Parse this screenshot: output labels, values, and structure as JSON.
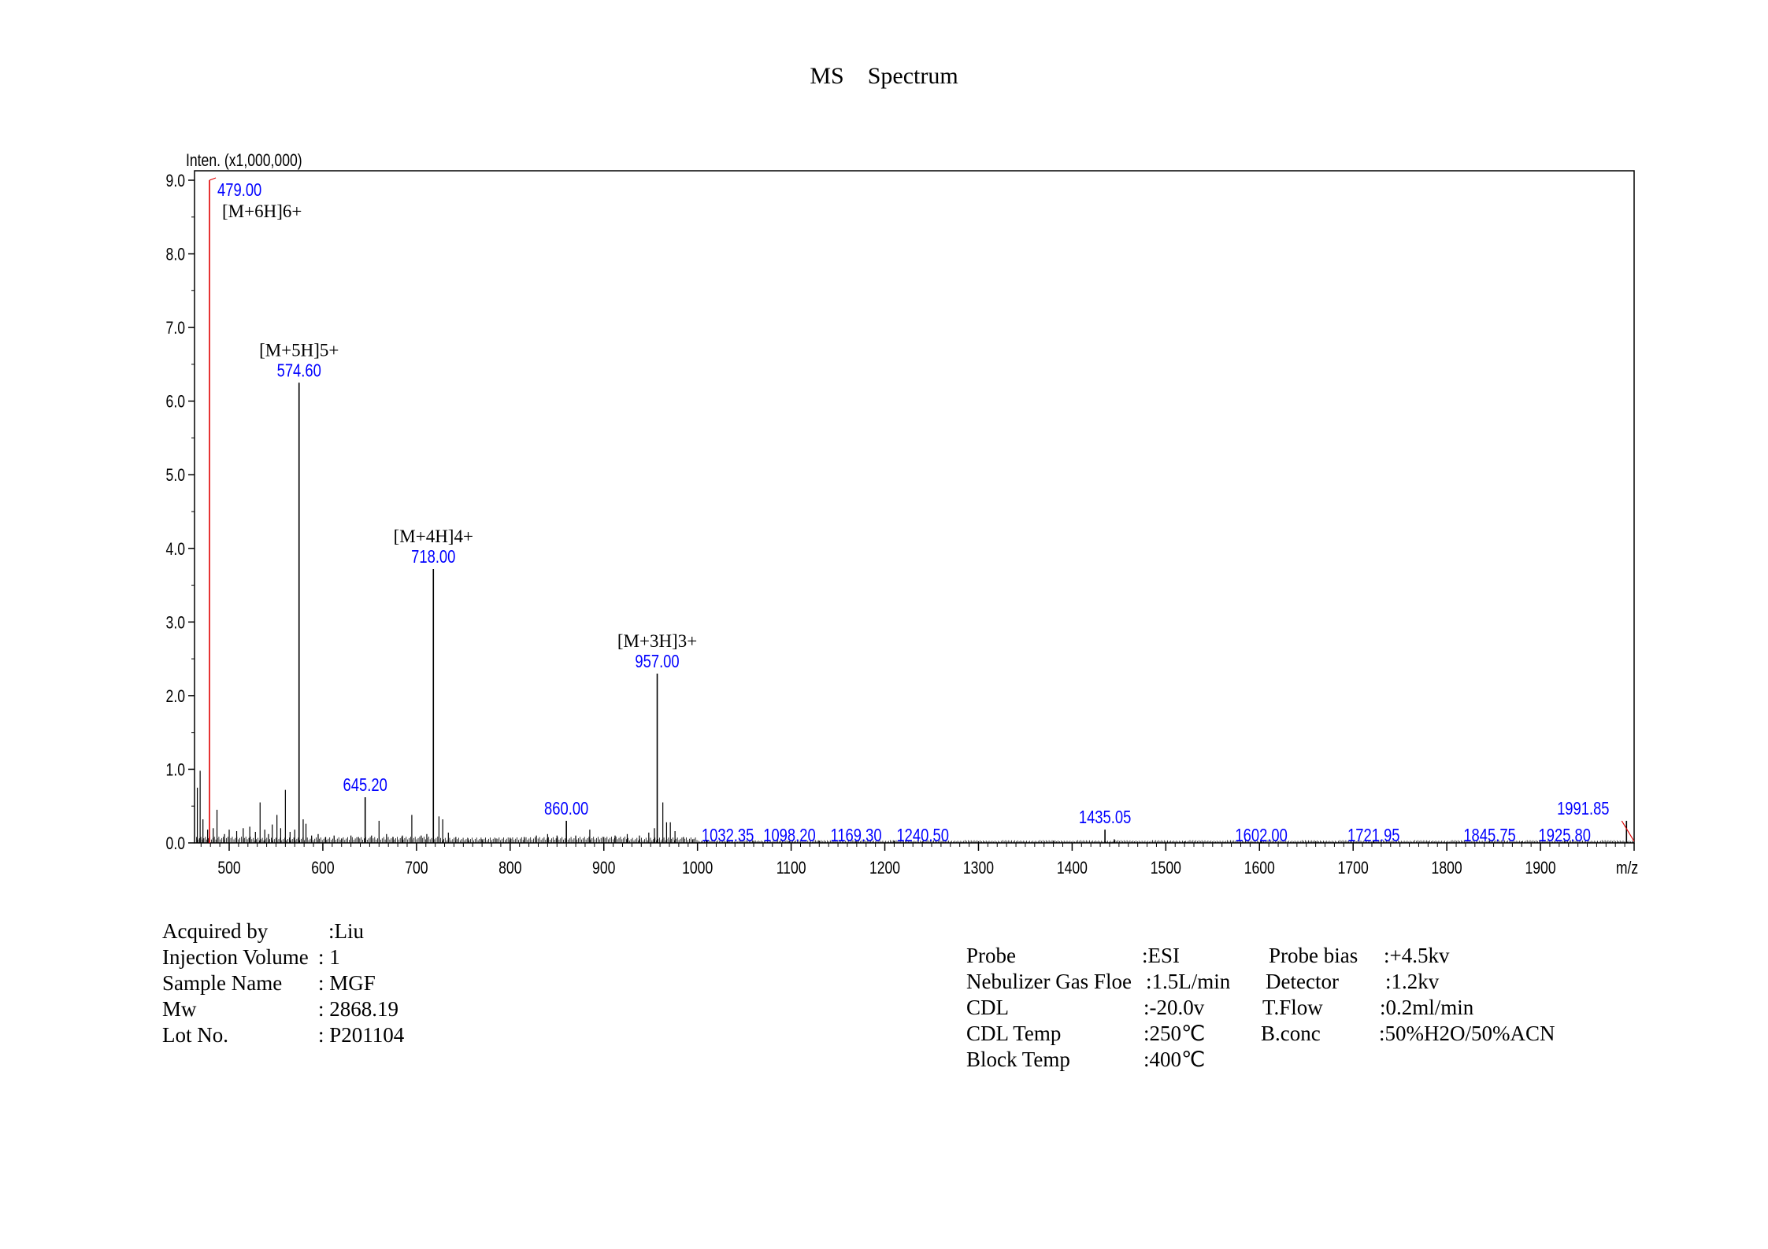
{
  "title": "MS    Spectrum",
  "chart_data": {
    "type": "spectrum",
    "title": "MS    Spectrum",
    "ylabel": "Inten. (x1,000,000)",
    "xlabel": "m/z",
    "xlim": [
      463,
      2000
    ],
    "ylim": [
      0,
      9.0
    ],
    "xticks": [
      500,
      600,
      700,
      800,
      900,
      1000,
      1100,
      1200,
      1300,
      1400,
      1500,
      1600,
      1700,
      1800,
      1900
    ],
    "xtick_labels": [
      "500",
      "600",
      "700",
      "800",
      "900",
      "1000",
      "1100",
      "1200",
      "1300",
      "1400",
      "1500",
      "1600",
      "1700",
      "1800",
      "1900"
    ],
    "yticks": [
      0,
      1,
      2,
      3,
      4,
      5,
      6,
      7,
      8,
      9
    ],
    "ytick_labels": [
      "0.0",
      "1.0",
      "2.0",
      "3.0",
      "4.0",
      "5.0",
      "6.0",
      "7.0",
      "8.0",
      "9.0"
    ],
    "grid": false,
    "highlight_color": "#e00000",
    "label_color": "#0000ff",
    "line_color": "#000000",
    "peaks": [
      {
        "mz": 479.0,
        "intensity": 9.0,
        "label": "479.00",
        "ion": "[M+6H]6+",
        "highlight": true
      },
      {
        "mz": 574.6,
        "intensity": 6.25,
        "label": "574.60",
        "ion": "[M+5H]5+"
      },
      {
        "mz": 718.0,
        "intensity": 3.72,
        "label": "718.00",
        "ion": "[M+4H]4+"
      },
      {
        "mz": 957.0,
        "intensity": 2.3,
        "label": "957.00",
        "ion": "[M+3H]3+"
      },
      {
        "mz": 645.2,
        "intensity": 0.62,
        "label": "645.20"
      },
      {
        "mz": 860.0,
        "intensity": 0.3,
        "label": "860.00"
      },
      {
        "mz": 1032.35,
        "intensity": 0.02,
        "label": "1032.35"
      },
      {
        "mz": 1098.2,
        "intensity": 0.02,
        "label": "1098.20"
      },
      {
        "mz": 1169.3,
        "intensity": 0.02,
        "label": "1169.30"
      },
      {
        "mz": 1240.5,
        "intensity": 0.02,
        "label": "1240.50"
      },
      {
        "mz": 1435.05,
        "intensity": 0.18,
        "label": "1435.05"
      },
      {
        "mz": 1602.0,
        "intensity": 0.02,
        "label": "1602.00"
      },
      {
        "mz": 1721.95,
        "intensity": 0.02,
        "label": "1721.95"
      },
      {
        "mz": 1845.75,
        "intensity": 0.02,
        "label": "1845.75"
      },
      {
        "mz": 1925.8,
        "intensity": 0.02,
        "label": "1925.80"
      },
      {
        "mz": 1991.85,
        "intensity": 0.3,
        "label": "1991.85"
      },
      {
        "mz": 466,
        "intensity": 0.75
      },
      {
        "mz": 469,
        "intensity": 0.98
      },
      {
        "mz": 472,
        "intensity": 0.32
      },
      {
        "mz": 477,
        "intensity": 0.18
      },
      {
        "mz": 483,
        "intensity": 0.2
      },
      {
        "mz": 487,
        "intensity": 0.45
      },
      {
        "mz": 495,
        "intensity": 0.12
      },
      {
        "mz": 500,
        "intensity": 0.18
      },
      {
        "mz": 508,
        "intensity": 0.16
      },
      {
        "mz": 515,
        "intensity": 0.2
      },
      {
        "mz": 522,
        "intensity": 0.22
      },
      {
        "mz": 528,
        "intensity": 0.15
      },
      {
        "mz": 533,
        "intensity": 0.55
      },
      {
        "mz": 538,
        "intensity": 0.18
      },
      {
        "mz": 542,
        "intensity": 0.12
      },
      {
        "mz": 546,
        "intensity": 0.25
      },
      {
        "mz": 551,
        "intensity": 0.38
      },
      {
        "mz": 555,
        "intensity": 0.2
      },
      {
        "mz": 560,
        "intensity": 0.72
      },
      {
        "mz": 565,
        "intensity": 0.15
      },
      {
        "mz": 570,
        "intensity": 0.18
      },
      {
        "mz": 579,
        "intensity": 0.32
      },
      {
        "mz": 582,
        "intensity": 0.26
      },
      {
        "mz": 588,
        "intensity": 0.1
      },
      {
        "mz": 595,
        "intensity": 0.12
      },
      {
        "mz": 603,
        "intensity": 0.08
      },
      {
        "mz": 612,
        "intensity": 0.1
      },
      {
        "mz": 620,
        "intensity": 0.06
      },
      {
        "mz": 630,
        "intensity": 0.1
      },
      {
        "mz": 638,
        "intensity": 0.08
      },
      {
        "mz": 652,
        "intensity": 0.1
      },
      {
        "mz": 660,
        "intensity": 0.3
      },
      {
        "mz": 668,
        "intensity": 0.12
      },
      {
        "mz": 675,
        "intensity": 0.08
      },
      {
        "mz": 685,
        "intensity": 0.1
      },
      {
        "mz": 695,
        "intensity": 0.38
      },
      {
        "mz": 705,
        "intensity": 0.1
      },
      {
        "mz": 711,
        "intensity": 0.12
      },
      {
        "mz": 724,
        "intensity": 0.36
      },
      {
        "mz": 728,
        "intensity": 0.32
      },
      {
        "mz": 734,
        "intensity": 0.14
      },
      {
        "mz": 742,
        "intensity": 0.08
      },
      {
        "mz": 755,
        "intensity": 0.06
      },
      {
        "mz": 770,
        "intensity": 0.05
      },
      {
        "mz": 785,
        "intensity": 0.06
      },
      {
        "mz": 800,
        "intensity": 0.07
      },
      {
        "mz": 815,
        "intensity": 0.08
      },
      {
        "mz": 828,
        "intensity": 0.1
      },
      {
        "mz": 840,
        "intensity": 0.12
      },
      {
        "mz": 850,
        "intensity": 0.1
      },
      {
        "mz": 870,
        "intensity": 0.1
      },
      {
        "mz": 885,
        "intensity": 0.18
      },
      {
        "mz": 900,
        "intensity": 0.08
      },
      {
        "mz": 912,
        "intensity": 0.1
      },
      {
        "mz": 925,
        "intensity": 0.12
      },
      {
        "mz": 938,
        "intensity": 0.1
      },
      {
        "mz": 948,
        "intensity": 0.14
      },
      {
        "mz": 954,
        "intensity": 0.2
      },
      {
        "mz": 963,
        "intensity": 0.55
      },
      {
        "mz": 967,
        "intensity": 0.28
      },
      {
        "mz": 971,
        "intensity": 0.28
      },
      {
        "mz": 976,
        "intensity": 0.16
      },
      {
        "mz": 985,
        "intensity": 0.08
      },
      {
        "mz": 995,
        "intensity": 0.05
      },
      {
        "mz": 1010,
        "intensity": 0.04
      },
      {
        "mz": 1060,
        "intensity": 0.03
      },
      {
        "mz": 1130,
        "intensity": 0.03
      },
      {
        "mz": 1210,
        "intensity": 0.03
      },
      {
        "mz": 1300,
        "intensity": 0.02
      },
      {
        "mz": 1380,
        "intensity": 0.03
      },
      {
        "mz": 1445,
        "intensity": 0.05
      },
      {
        "mz": 1520,
        "intensity": 0.02
      },
      {
        "mz": 1660,
        "intensity": 0.02
      },
      {
        "mz": 1780,
        "intensity": 0.02
      },
      {
        "mz": 1880,
        "intensity": 0.02
      }
    ]
  },
  "acquisition": [
    {
      "label": "Acquired by",
      "value": ":Liu"
    },
    {
      "label": "Injection Volume",
      "value": ": 1"
    },
    {
      "label": "Sample Name",
      "value": ": MGF"
    },
    {
      "label": "Mw",
      "value": ": 2868.19"
    },
    {
      "label": "Lot No.",
      "value": ": P201104"
    }
  ],
  "conditions": [
    {
      "label": "Probe",
      "value": ":ESI",
      "label2": "Probe bias",
      "value2": ":+4.5kv"
    },
    {
      "label": "Nebulizer Gas Floe",
      "value": ":1.5L/min",
      "label2": "Detector",
      "value2": ":1.2kv"
    },
    {
      "label": "CDL",
      "value": ":-20.0v",
      "label2": "T.Flow",
      "value2": ":0.2ml/min"
    },
    {
      "label": "CDL Temp",
      "value": ":250℃",
      "label2": "B.conc",
      "value2": ":50%H2O/50%ACN"
    },
    {
      "label": "Block Temp",
      "value": ":400℃",
      "label2": "",
      "value2": ""
    }
  ]
}
